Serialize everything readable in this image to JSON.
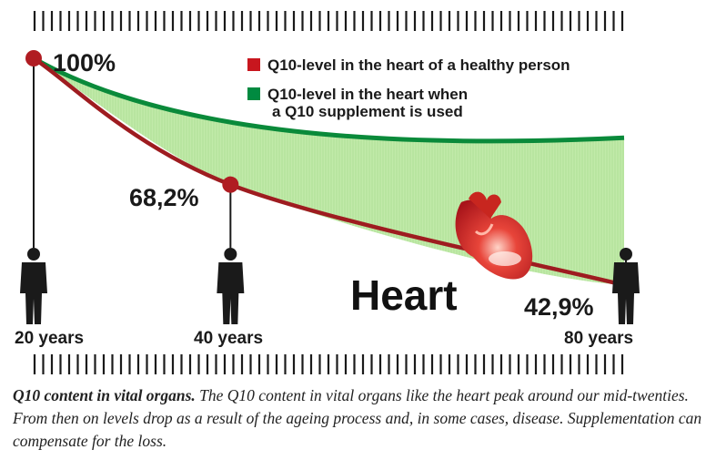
{
  "chart_data": {
    "type": "area",
    "x": [
      20,
      40,
      80
    ],
    "tick_labels": [
      "20 years",
      "40 years",
      "80 years"
    ],
    "series": [
      {
        "name": "Q10-level in the heart of a healthy person",
        "values": [
          100,
          68.2,
          42.9
        ],
        "color": "#9e1c20"
      },
      {
        "name": "Q10-level in the heart when a Q10 supplement is used",
        "values": [
          100,
          85,
          80
        ],
        "color": "#0a8a3a"
      }
    ],
    "fill_color": "#b6e69a",
    "data_labels": [
      "100%",
      "68,2%",
      "42,9%"
    ],
    "legend": [
      {
        "lines": [
          "Q10-level in the heart of a healthy person"
        ],
        "color": "#c8161e"
      },
      {
        "lines": [
          "Q10-level in the heart when",
          "a Q10 supplement is used"
        ],
        "color": "#008a40"
      }
    ],
    "legend_position": "top-right",
    "annotation": "Heart",
    "heart_icon": "heart-organ-icon",
    "person_icon": "person-silhouette-icon",
    "ruler_color": "#1a1a1a",
    "xlim": [
      20,
      80
    ],
    "ylim": [
      42.9,
      100
    ]
  },
  "caption": {
    "lead": "Q10 content in vital organs.",
    "text": " The Q10 content in vital organs like the heart peak around our mid-twenties. From then on levels drop as a result of the ageing process and, in some cases, disease. Supplementation can compensate for the loss."
  }
}
